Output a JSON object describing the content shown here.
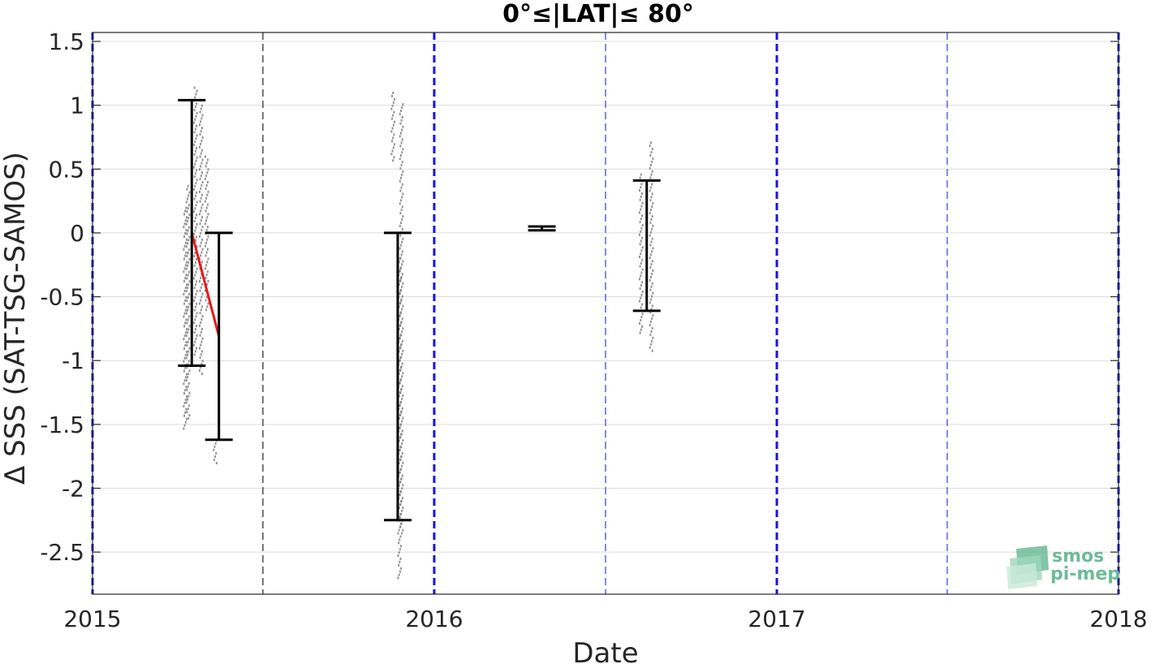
{
  "chart_data": {
    "type": "scatter",
    "title": "0°≤|LAT|≤ 80°",
    "xlabel": "Date",
    "ylabel": "Δ SSS (SAT-TSG-SAMOS)",
    "xlim": [
      "2015-01-01",
      "2018-01-01"
    ],
    "ylim": [
      -2.83,
      1.57
    ],
    "xticks": [
      "2015",
      "2016",
      "2017",
      "2018"
    ],
    "yticks": [
      "1.5",
      "1",
      "0.5",
      "0",
      "-0.5",
      "-1",
      "-1.5",
      "-2",
      "-2.5"
    ],
    "grid": true,
    "year_boundaries": [
      "2015-01-01",
      "2016-01-01",
      "2017-01-01",
      "2018-01-01"
    ],
    "half_year_lines": [
      "2015-07-02",
      "2016-07-02",
      "2017-07-02"
    ],
    "series": [
      {
        "kind": "monthly_error_bars",
        "color": "#000000",
        "points": [
          {
            "x": "2015-04-17",
            "low": -1.04,
            "high": 1.04
          },
          {
            "x": "2015-05-16",
            "low": -1.62,
            "high": 0.0
          },
          {
            "x": "2015-11-23",
            "low": -2.25,
            "high": 0.0
          },
          {
            "x": "2016-04-25",
            "low": 0.02,
            "high": 0.05
          },
          {
            "x": "2016-08-15",
            "low": -0.61,
            "high": 0.41
          }
        ]
      },
      {
        "kind": "monthly_mean",
        "color": "#e41a1c",
        "points": [
          {
            "x": "2015-04-17",
            "y": 0.0
          },
          {
            "x": "2015-05-16",
            "y": -0.81
          }
        ]
      },
      {
        "kind": "daily_differences",
        "color": "#808080",
        "clusters": [
          {
            "x": "2015-04-10",
            "min": -1.53,
            "max": 0.2
          },
          {
            "x": "2015-04-13",
            "min": -1.45,
            "max": 0.37
          },
          {
            "x": "2015-04-21",
            "min": -0.95,
            "max": 1.14
          },
          {
            "x": "2015-04-27",
            "min": -1.1,
            "max": 1.0
          },
          {
            "x": "2015-05-03",
            "min": -0.6,
            "max": 0.6
          },
          {
            "x": "2015-05-12",
            "min": -1.8,
            "max": -1.62
          },
          {
            "x": "2015-11-18",
            "min": 0.57,
            "max": 1.1
          },
          {
            "x": "2015-11-25",
            "min": -2.7,
            "max": -0.2
          },
          {
            "x": "2015-11-27",
            "min": -2.35,
            "max": 1.01
          },
          {
            "x": "2016-08-09",
            "min": -0.78,
            "max": 0.46
          },
          {
            "x": "2016-08-20",
            "min": -0.92,
            "max": 0.71
          }
        ]
      }
    ]
  },
  "logo": {
    "line1": "smos",
    "line2": "pi-mep",
    "color": "#6dbb98"
  }
}
